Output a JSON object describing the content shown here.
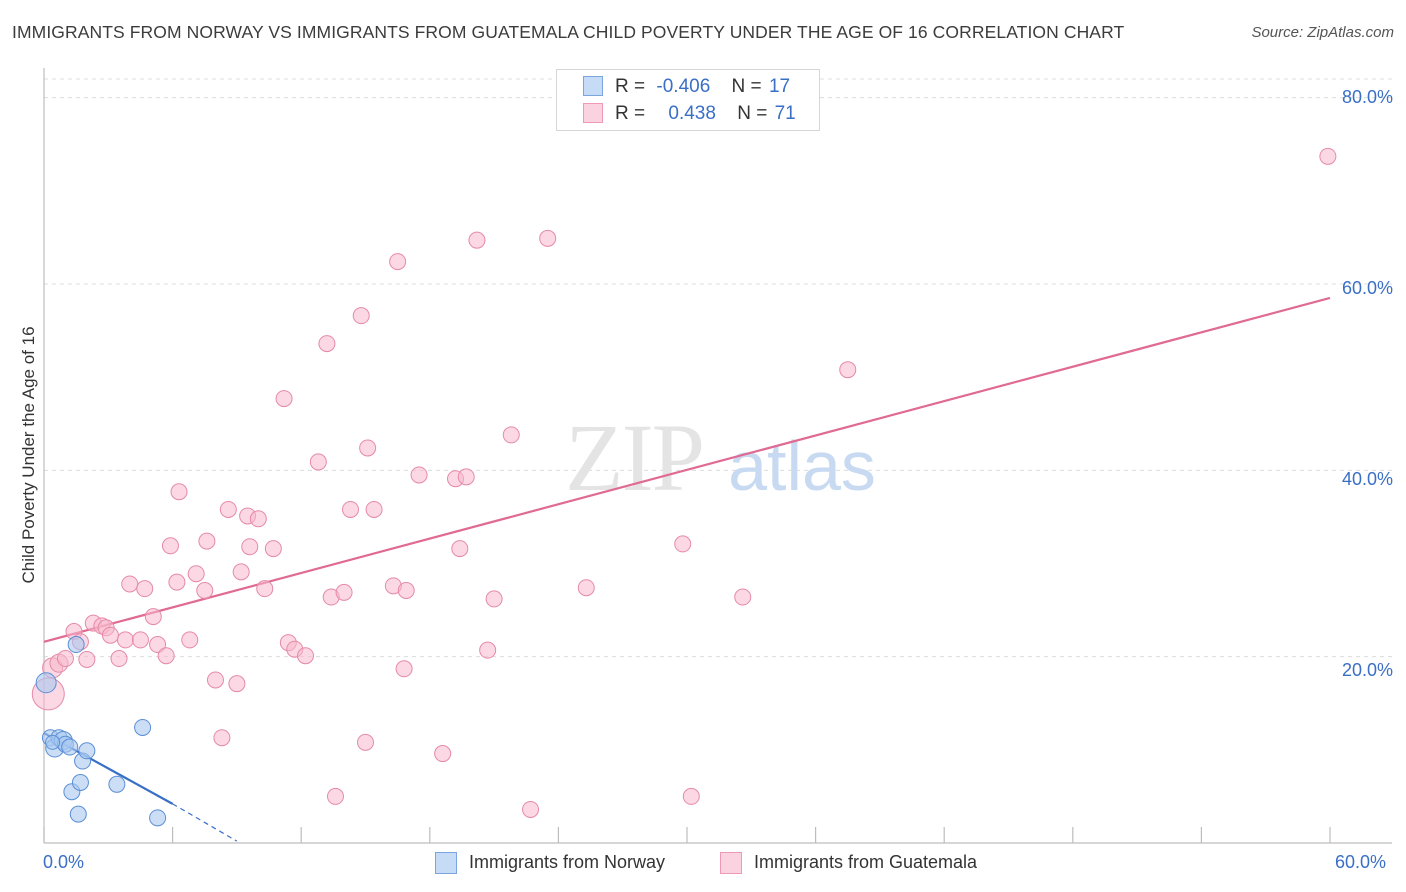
{
  "title": "IMMIGRANTS FROM NORWAY VS IMMIGRANTS FROM GUATEMALA CHILD POVERTY UNDER THE AGE OF 16 CORRELATION CHART",
  "source": "Source: ZipAtlas.com",
  "watermark": {
    "zip": "ZIP",
    "atlas": "atlas"
  },
  "legend": {
    "rows": [
      {
        "r_label": "R =",
        "r_value": "-0.406",
        "n_label": "N =",
        "n_value": "17",
        "color": "#a8c8f0"
      },
      {
        "r_label": "R =",
        "r_value": "0.438",
        "n_label": "N =",
        "n_value": "71",
        "color": "#f7b8cc"
      }
    ]
  },
  "colors": {
    "norway_fill": "#a8c8f0",
    "norway_stroke": "#5b8fd6",
    "norway_line": "#3a6fc6",
    "guatemala_fill": "#f7b8cc",
    "guatemala_stroke": "#e58aa8",
    "guatemala_line": "#e06a92",
    "axis_label": "#3a6fc6",
    "grid": "#dcdcdc"
  },
  "chart_data": {
    "type": "scatter",
    "title": "IMMIGRANTS FROM NORWAY VS IMMIGRANTS FROM GUATEMALA CHILD POVERTY UNDER THE AGE OF 16 CORRELATION CHART",
    "xlabel": "",
    "ylabel": "Child Poverty Under the Age of 16",
    "xlim": [
      0,
      60
    ],
    "ylim": [
      0,
      82
    ],
    "x_tick_labels": [
      {
        "value": 0,
        "label": "0.0%"
      },
      {
        "value": 60,
        "label": "60.0%"
      }
    ],
    "y_tick_labels": [
      {
        "value": 20,
        "label": "20.0%"
      },
      {
        "value": 40,
        "label": "40.0%"
      },
      {
        "value": 60,
        "label": "60.0%"
      },
      {
        "value": 80,
        "label": "80.0%"
      }
    ],
    "series": [
      {
        "name": "Immigrants from Norway",
        "points": [
          {
            "x": 0.1,
            "y": 17.2,
            "s": 10
          },
          {
            "x": 0.3,
            "y": 11.3,
            "s": 8
          },
          {
            "x": 0.5,
            "y": 10.2,
            "s": 9
          },
          {
            "x": 0.7,
            "y": 11.3,
            "s": 8
          },
          {
            "x": 0.9,
            "y": 11.0,
            "s": 9
          },
          {
            "x": 1.0,
            "y": 10.6,
            "s": 8
          },
          {
            "x": 1.2,
            "y": 10.3,
            "s": 8
          },
          {
            "x": 1.3,
            "y": 5.5,
            "s": 8
          },
          {
            "x": 1.5,
            "y": 21.3,
            "s": 8
          },
          {
            "x": 1.6,
            "y": 3.1,
            "s": 8
          },
          {
            "x": 1.7,
            "y": 6.5,
            "s": 8
          },
          {
            "x": 1.8,
            "y": 8.8,
            "s": 8
          },
          {
            "x": 2.0,
            "y": 9.9,
            "s": 8
          },
          {
            "x": 3.4,
            "y": 6.3,
            "s": 8
          },
          {
            "x": 4.6,
            "y": 12.4,
            "s": 8
          },
          {
            "x": 5.3,
            "y": 2.7,
            "s": 8
          },
          {
            "x": 0.4,
            "y": 10.8,
            "s": 7
          }
        ],
        "trend": {
          "x_start": 0,
          "y_start": 11.8,
          "x_solid_end": 6.0,
          "y_solid_end": 4.2,
          "x_end": 9.0,
          "y_end": 0.2
        }
      },
      {
        "name": "Immigrants from Guatemala",
        "points": [
          {
            "x": 0.2,
            "y": 16.0,
            "s": 16
          },
          {
            "x": 0.4,
            "y": 18.8,
            "s": 10
          },
          {
            "x": 0.7,
            "y": 19.3,
            "s": 9
          },
          {
            "x": 1.0,
            "y": 19.8,
            "s": 8
          },
          {
            "x": 1.4,
            "y": 22.7,
            "s": 8
          },
          {
            "x": 1.7,
            "y": 21.6,
            "s": 8
          },
          {
            "x": 2.0,
            "y": 19.7,
            "s": 8
          },
          {
            "x": 2.3,
            "y": 23.6,
            "s": 8
          },
          {
            "x": 2.7,
            "y": 23.3,
            "s": 8
          },
          {
            "x": 2.9,
            "y": 23.1,
            "s": 8
          },
          {
            "x": 3.1,
            "y": 22.3,
            "s": 8
          },
          {
            "x": 3.5,
            "y": 19.8,
            "s": 8
          },
          {
            "x": 3.8,
            "y": 21.8,
            "s": 8
          },
          {
            "x": 4.0,
            "y": 27.8,
            "s": 8
          },
          {
            "x": 4.5,
            "y": 21.8,
            "s": 8
          },
          {
            "x": 4.7,
            "y": 27.3,
            "s": 8
          },
          {
            "x": 5.1,
            "y": 24.3,
            "s": 8
          },
          {
            "x": 5.3,
            "y": 21.3,
            "s": 8
          },
          {
            "x": 5.7,
            "y": 20.1,
            "s": 8
          },
          {
            "x": 5.9,
            "y": 31.9,
            "s": 8
          },
          {
            "x": 6.2,
            "y": 28.0,
            "s": 8
          },
          {
            "x": 6.3,
            "y": 37.7,
            "s": 8
          },
          {
            "x": 6.8,
            "y": 21.8,
            "s": 8
          },
          {
            "x": 7.1,
            "y": 28.9,
            "s": 8
          },
          {
            "x": 7.5,
            "y": 27.1,
            "s": 8
          },
          {
            "x": 7.6,
            "y": 32.4,
            "s": 8
          },
          {
            "x": 8.0,
            "y": 17.5,
            "s": 8
          },
          {
            "x": 8.3,
            "y": 11.3,
            "s": 8
          },
          {
            "x": 8.6,
            "y": 35.8,
            "s": 8
          },
          {
            "x": 9.0,
            "y": 17.1,
            "s": 8
          },
          {
            "x": 9.2,
            "y": 29.1,
            "s": 8
          },
          {
            "x": 9.5,
            "y": 35.1,
            "s": 8
          },
          {
            "x": 9.6,
            "y": 31.8,
            "s": 8
          },
          {
            "x": 10.0,
            "y": 34.8,
            "s": 8
          },
          {
            "x": 10.3,
            "y": 27.3,
            "s": 8
          },
          {
            "x": 10.7,
            "y": 31.6,
            "s": 8
          },
          {
            "x": 11.2,
            "y": 47.7,
            "s": 8
          },
          {
            "x": 11.4,
            "y": 21.5,
            "s": 8
          },
          {
            "x": 11.7,
            "y": 20.8,
            "s": 8
          },
          {
            "x": 12.2,
            "y": 20.1,
            "s": 8
          },
          {
            "x": 12.8,
            "y": 40.9,
            "s": 8
          },
          {
            "x": 13.2,
            "y": 53.6,
            "s": 8
          },
          {
            "x": 13.4,
            "y": 26.4,
            "s": 8
          },
          {
            "x": 13.6,
            "y": 5.0,
            "s": 8
          },
          {
            "x": 14.0,
            "y": 26.9,
            "s": 8
          },
          {
            "x": 14.3,
            "y": 35.8,
            "s": 8
          },
          {
            "x": 14.8,
            "y": 56.6,
            "s": 8
          },
          {
            "x": 15.0,
            "y": 10.8,
            "s": 8
          },
          {
            "x": 15.1,
            "y": 42.4,
            "s": 8
          },
          {
            "x": 15.4,
            "y": 35.8,
            "s": 8
          },
          {
            "x": 16.3,
            "y": 27.6,
            "s": 8
          },
          {
            "x": 16.5,
            "y": 62.4,
            "s": 8
          },
          {
            "x": 16.8,
            "y": 18.7,
            "s": 8
          },
          {
            "x": 16.9,
            "y": 27.1,
            "s": 8
          },
          {
            "x": 17.5,
            "y": 39.5,
            "s": 8
          },
          {
            "x": 18.6,
            "y": 9.6,
            "s": 8
          },
          {
            "x": 19.2,
            "y": 39.1,
            "s": 8
          },
          {
            "x": 19.4,
            "y": 31.6,
            "s": 8
          },
          {
            "x": 19.7,
            "y": 39.3,
            "s": 8
          },
          {
            "x": 20.2,
            "y": 64.7,
            "s": 8
          },
          {
            "x": 20.7,
            "y": 20.7,
            "s": 8
          },
          {
            "x": 21.0,
            "y": 26.2,
            "s": 8
          },
          {
            "x": 21.8,
            "y": 43.8,
            "s": 8
          },
          {
            "x": 22.7,
            "y": 3.6,
            "s": 8
          },
          {
            "x": 23.5,
            "y": 64.9,
            "s": 8
          },
          {
            "x": 25.3,
            "y": 27.4,
            "s": 8
          },
          {
            "x": 29.8,
            "y": 32.1,
            "s": 8
          },
          {
            "x": 30.2,
            "y": 5.0,
            "s": 8
          },
          {
            "x": 32.6,
            "y": 26.4,
            "s": 8
          },
          {
            "x": 37.5,
            "y": 50.8,
            "s": 8
          },
          {
            "x": 59.9,
            "y": 73.7,
            "s": 8
          }
        ],
        "trend": {
          "x_start": 0,
          "y_start": 21.6,
          "x_end": 60,
          "y_end": 58.5
        }
      }
    ]
  }
}
